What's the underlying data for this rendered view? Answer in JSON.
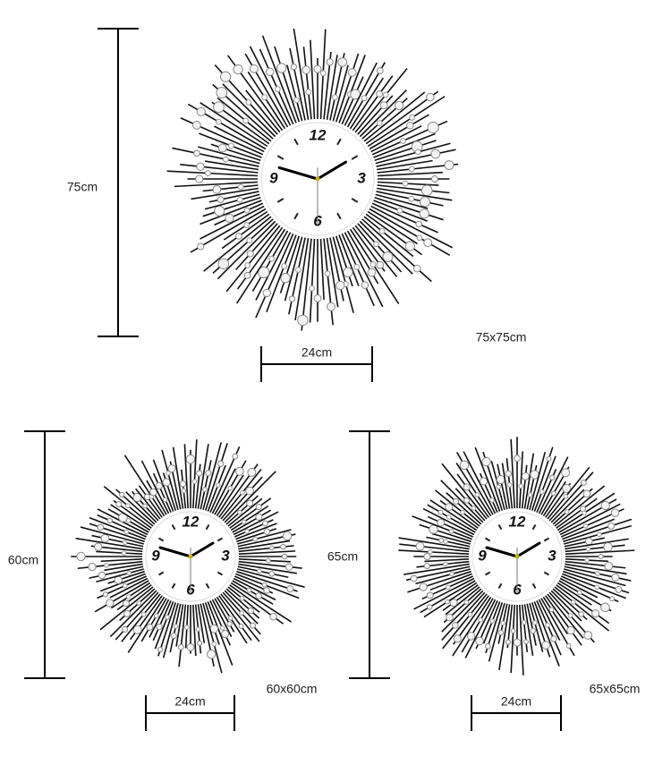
{
  "clocks": [
    {
      "height_label": "75cm",
      "face_label": "24cm",
      "size_label": "75x75cm",
      "numerals": [
        "12",
        "3",
        "6",
        "9"
      ]
    },
    {
      "height_label": "60cm",
      "face_label": "24cm",
      "size_label": "60x60cm",
      "numerals": [
        "12",
        "3",
        "6",
        "9"
      ]
    },
    {
      "height_label": "65cm",
      "face_label": "24cm",
      "size_label": "65x65cm",
      "numerals": [
        "12",
        "3",
        "6",
        "9"
      ]
    }
  ]
}
